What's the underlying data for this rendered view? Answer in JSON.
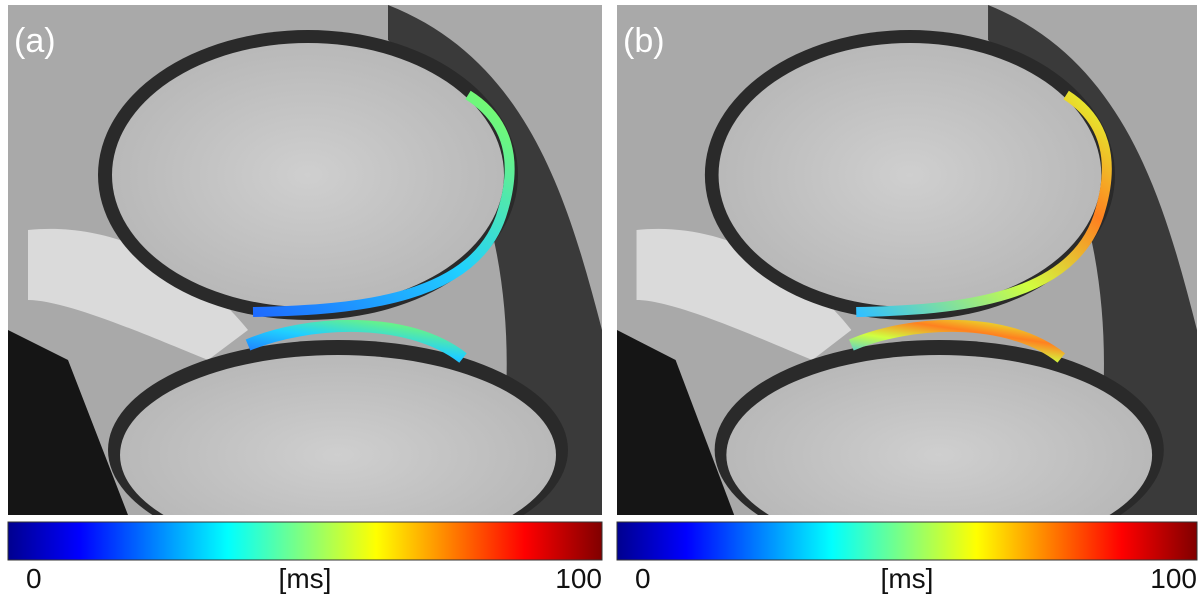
{
  "panels": [
    {
      "label": "(a)",
      "colorbar": {
        "min": 0,
        "max": 100,
        "unit": "[ms]"
      }
    },
    {
      "label": "(b)",
      "colorbar": {
        "min": 0,
        "max": 100,
        "unit": "[ms]"
      }
    }
  ]
}
